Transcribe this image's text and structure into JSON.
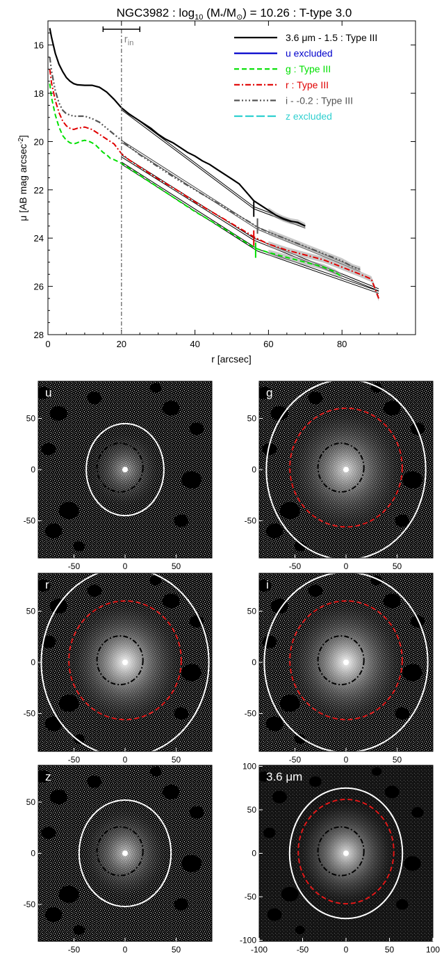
{
  "chart_data": [
    {
      "type": "line",
      "title": "NGC3982 : log10 (M*/M⊙) = 10.26 : T-type 3.0",
      "title_parts": {
        "pre": "NGC3982 : log",
        "sub": "10",
        "mid": " (M",
        "star": "*",
        "slash": "/M",
        "sun": "⊙",
        "post": ") = 10.26 : T-type 3.0"
      },
      "xlabel": "r [arcsec]",
      "ylabel": "μ [AB mag arcsec",
      "ylabel_sup": "-2",
      "ylabel_close": "]",
      "xlim": [
        0,
        100
      ],
      "ylim": [
        28,
        15
      ],
      "xticks": [
        0,
        20,
        40,
        60,
        80
      ],
      "yticks": [
        16,
        18,
        20,
        22,
        24,
        26,
        28
      ],
      "rin": {
        "label": "r",
        "sub": "in",
        "value": 20,
        "range": [
          15,
          25
        ]
      },
      "legend_position": "top-right",
      "series": [
        {
          "key": "ir",
          "name": "3.6 μm - 1.5 : Type III",
          "color": "#000000",
          "dash": "",
          "width": 2.2,
          "x": [
            0.5,
            1,
            2,
            3,
            4,
            5,
            6,
            7,
            8,
            10,
            12,
            14,
            16,
            18,
            20,
            22,
            24,
            26,
            28,
            30,
            32,
            34,
            36,
            38,
            40,
            42,
            44,
            46,
            48,
            50,
            52,
            54,
            56,
            58,
            60,
            62,
            64,
            66,
            68,
            70
          ],
          "y": [
            15.3,
            15.7,
            16.35,
            16.8,
            17.1,
            17.35,
            17.5,
            17.6,
            17.65,
            17.67,
            17.67,
            17.75,
            17.95,
            18.25,
            18.6,
            18.85,
            19.05,
            19.25,
            19.45,
            19.7,
            19.9,
            20.05,
            20.25,
            20.45,
            20.6,
            20.8,
            20.95,
            21.15,
            21.35,
            21.55,
            21.75,
            22.1,
            22.45,
            22.65,
            22.85,
            23.05,
            23.2,
            23.3,
            23.35,
            23.5
          ]
        },
        {
          "key": "u",
          "name": "u excluded",
          "color": "#0000cc",
          "dash": "",
          "width": 2,
          "x": [],
          "y": []
        },
        {
          "key": "g",
          "name": "g : Type III",
          "color": "#00e000",
          "dash": "7,4",
          "width": 2,
          "x": [
            0.5,
            1,
            2,
            3,
            4,
            5,
            6,
            7,
            8,
            9,
            10,
            11,
            12,
            13,
            14,
            15,
            16,
            17,
            18,
            20,
            22,
            25,
            28,
            30,
            35,
            40,
            45,
            50,
            55,
            57,
            60,
            65,
            70,
            75,
            78,
            80
          ],
          "y": [
            17.6,
            18.2,
            18.9,
            19.4,
            19.75,
            19.95,
            20.05,
            20.1,
            20.05,
            19.98,
            19.95,
            19.98,
            20.05,
            20.15,
            20.3,
            20.45,
            20.55,
            20.7,
            20.75,
            20.9,
            21.1,
            21.4,
            21.7,
            21.9,
            22.4,
            22.9,
            23.35,
            23.8,
            24.3,
            24.45,
            24.6,
            24.8,
            25.0,
            25.2,
            25.4,
            25.6
          ]
        },
        {
          "key": "r",
          "name": "r : Type III",
          "color": "#e00000",
          "dash": "8,3,2,3",
          "width": 2,
          "x": [
            0.5,
            1,
            2,
            3,
            4,
            5,
            6,
            7,
            8,
            10,
            12,
            14,
            16,
            18,
            20,
            22,
            25,
            28,
            30,
            35,
            40,
            45,
            50,
            55,
            56,
            58,
            60,
            65,
            70,
            75,
            80,
            85,
            88,
            90
          ],
          "y": [
            17.0,
            17.6,
            18.3,
            18.8,
            19.15,
            19.35,
            19.45,
            19.5,
            19.45,
            19.4,
            19.5,
            19.7,
            19.9,
            20.1,
            20.5,
            20.75,
            21.05,
            21.35,
            21.55,
            22.0,
            22.5,
            22.95,
            23.4,
            23.85,
            23.95,
            24.1,
            24.25,
            24.5,
            24.7,
            24.9,
            25.2,
            25.5,
            25.7,
            26.5
          ]
        },
        {
          "key": "i",
          "name": "i - -0.2 : Type III",
          "color": "#555555",
          "dash": "8,3,2,3,2,3,2,3",
          "width": 2.2,
          "x": [
            0.5,
            1,
            2,
            3,
            4,
            5,
            6,
            7,
            8,
            10,
            12,
            14,
            16,
            18,
            20,
            22,
            25,
            28,
            30,
            35,
            40,
            45,
            50,
            55,
            57,
            60,
            65,
            70,
            75,
            80,
            83,
            85
          ],
          "y": [
            16.5,
            17.1,
            17.9,
            18.4,
            18.7,
            18.85,
            18.9,
            18.95,
            18.95,
            18.95,
            19.05,
            19.2,
            19.45,
            19.7,
            19.95,
            20.2,
            20.55,
            20.85,
            21.05,
            21.55,
            22.0,
            22.45,
            22.9,
            23.35,
            23.55,
            23.75,
            24.05,
            24.35,
            24.65,
            24.95,
            25.2,
            25.3
          ]
        },
        {
          "key": "z",
          "name": "z excluded",
          "color": "#30d0d0",
          "dash": "12,4",
          "width": 2,
          "x": [],
          "y": []
        }
      ],
      "fits": [
        {
          "x": [
            20,
            56
          ],
          "y": [
            18.6,
            22.7
          ],
          "color": "#000000"
        },
        {
          "x": [
            56,
            70
          ],
          "y": [
            22.7,
            23.5
          ],
          "color": "#000000"
        },
        {
          "x": [
            20,
            57
          ],
          "y": [
            19.95,
            23.55
          ],
          "color": "#444444"
        },
        {
          "x": [
            57,
            85
          ],
          "y": [
            23.55,
            25.3
          ],
          "color": "#444444"
        },
        {
          "x": [
            20,
            56
          ],
          "y": [
            20.55,
            24.0
          ],
          "color": "#000000"
        },
        {
          "x": [
            56,
            90
          ],
          "y": [
            24.0,
            26.1
          ],
          "color": "#000000"
        },
        {
          "x": [
            20,
            57
          ],
          "y": [
            20.85,
            24.45
          ],
          "color": "#000000"
        },
        {
          "x": [
            57,
            90
          ],
          "y": [
            24.45,
            26.2
          ],
          "color": "#000000"
        }
      ],
      "breaks": [
        {
          "x": 56,
          "y": 22.8,
          "color": "#000000"
        },
        {
          "x": 57,
          "y": 23.5,
          "color": "#555555"
        },
        {
          "x": 56,
          "y": 24.0,
          "color": "#e00000"
        },
        {
          "x": 56.5,
          "y": 24.5,
          "color": "#00e000"
        }
      ]
    },
    {
      "type": "image-panels",
      "panels": [
        {
          "label": "u",
          "xticks": [
            -50,
            0,
            50
          ],
          "yticks": [
            50,
            0,
            -50
          ],
          "lim": 85,
          "ellipse_white": [
            0,
            0,
            38,
            45
          ],
          "ellipse_red": null,
          "ellipse_black": [
            -5,
            2,
            15,
            17
          ],
          "glow": 0.55
        },
        {
          "label": "g",
          "xticks": [
            -50,
            0,
            50
          ],
          "yticks": [
            50,
            0,
            -50
          ],
          "lim": 85,
          "ellipse_white": [
            0,
            0,
            78,
            88
          ],
          "ellipse_red": [
            0,
            2,
            55,
            58
          ],
          "ellipse_black": [
            -5,
            2,
            15,
            17
          ],
          "glow": 0.8
        },
        {
          "label": "r",
          "xticks": [
            -50,
            0,
            50
          ],
          "yticks": [
            50,
            0,
            -50
          ],
          "lim": 85,
          "ellipse_white": [
            0,
            0,
            82,
            92
          ],
          "ellipse_red": [
            0,
            2,
            55,
            58
          ],
          "ellipse_black": [
            -5,
            2,
            15,
            17
          ],
          "glow": 0.95
        },
        {
          "label": "i",
          "xticks": [
            -50,
            0,
            50
          ],
          "yticks": [
            50,
            0,
            -50
          ],
          "lim": 85,
          "ellipse_white": [
            0,
            0,
            80,
            88
          ],
          "ellipse_red": [
            0,
            2,
            55,
            58
          ],
          "ellipse_black": [
            -5,
            2,
            15,
            17
          ],
          "glow": 0.95
        },
        {
          "label": "z",
          "xticks": [
            -50,
            0,
            50
          ],
          "yticks": [
            50,
            0,
            -50
          ],
          "lim": 85,
          "ellipse_white": [
            0,
            0,
            45,
            52
          ],
          "ellipse_red": null,
          "ellipse_black": [
            -5,
            2,
            15,
            17
          ],
          "glow": 0.7
        },
        {
          "label": "3.6 μm",
          "xticks": [
            -100,
            -50,
            0,
            50,
            100
          ],
          "yticks": [
            100,
            50,
            0,
            -50,
            -100
          ],
          "lim": 100,
          "ellipse_white": [
            0,
            0,
            65,
            75
          ],
          "ellipse_red": [
            0,
            2,
            55,
            60
          ],
          "ellipse_black": [
            -5,
            2,
            15,
            17
          ],
          "glow": 0.85
        }
      ]
    }
  ]
}
